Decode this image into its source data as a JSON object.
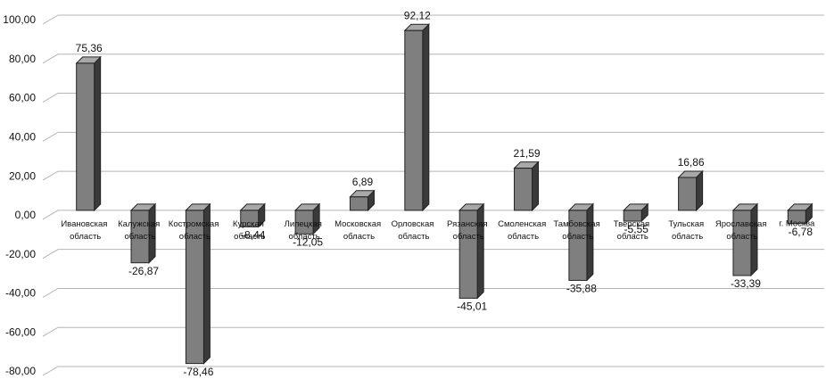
{
  "chart_data": {
    "type": "bar3d",
    "categories": [
      "Ивановская область",
      "Калужская область",
      "Костромская область",
      "Курская область",
      "Липецкая область",
      "Московская область",
      "Орловская область",
      "Рязанская область",
      "Смоленская область",
      "Тамбовская область",
      "Тверская область",
      "Тульская область",
      "Ярославская область",
      "г. Москва"
    ],
    "values": [
      75.36,
      -26.87,
      -78.46,
      -8.44,
      -12.05,
      6.89,
      92.12,
      -45.01,
      21.59,
      -35.88,
      -5.55,
      16.86,
      -33.39,
      -6.78
    ],
    "value_labels": [
      "75,36",
      "-26,87",
      "-78,46",
      "-8,44",
      "-12,05",
      "6,89",
      "92,12",
      "-45,01",
      "21,59",
      "-35,88",
      "-5,55",
      "16,86",
      "-33,39",
      "-6,78"
    ],
    "color": "#7f7f7f",
    "ylim": [
      -80,
      100
    ],
    "yticks": [
      {
        "value": -80,
        "label": "-80,00"
      },
      {
        "value": -60,
        "label": "-60,00"
      },
      {
        "value": -40,
        "label": "-40,00"
      },
      {
        "value": -20,
        "label": "-20,00"
      },
      {
        "value": 0,
        "label": "0,00"
      },
      {
        "value": 20,
        "label": "20,00"
      },
      {
        "value": 40,
        "label": "40,00"
      },
      {
        "value": 60,
        "label": "60,00"
      },
      {
        "value": 80,
        "label": "80,00"
      },
      {
        "value": 100,
        "label": "100,00"
      }
    ],
    "grid": true
  }
}
